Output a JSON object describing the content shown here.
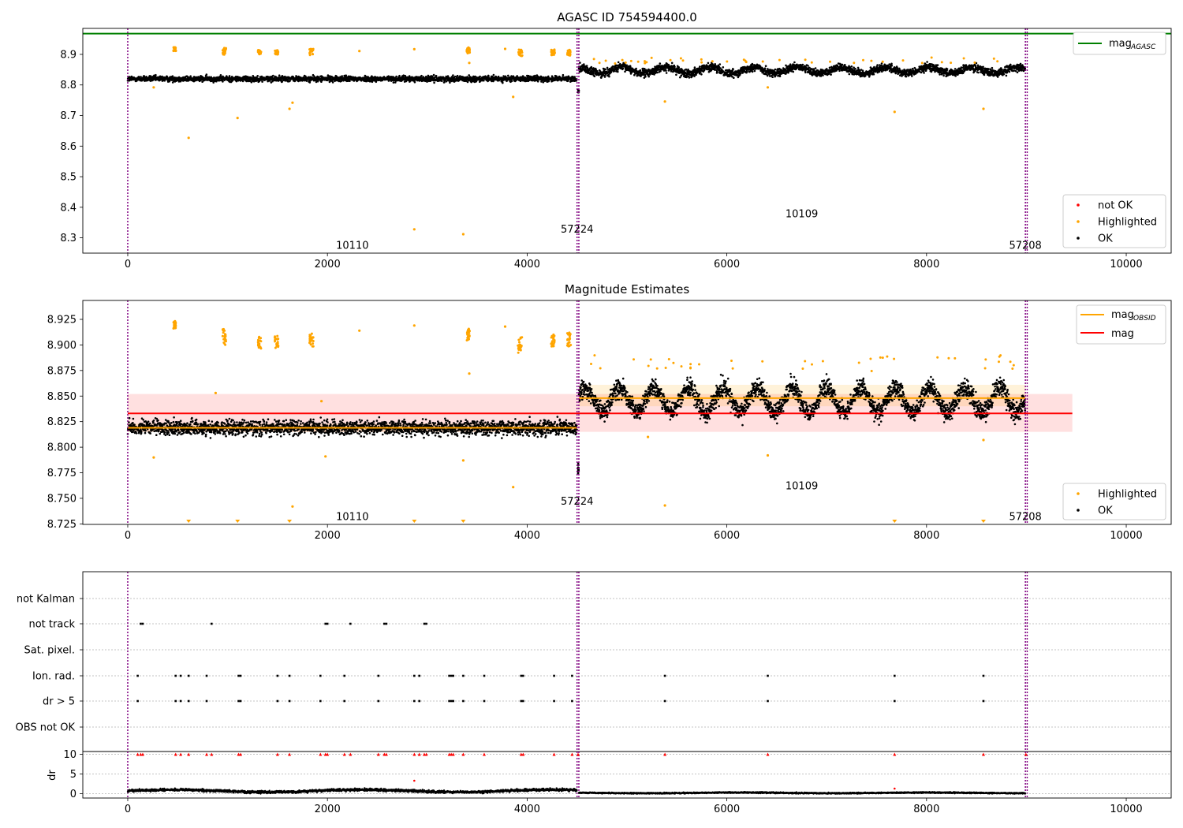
{
  "colors": {
    "ok": "#000000",
    "highlighted": "#ffa500",
    "not_ok": "#ff0000",
    "mag_agasc": "#008000",
    "mag": "#ff0000",
    "mag_obsid": "#ffa500",
    "obsid_marker": "#800080",
    "grid": "#b0b0b0"
  },
  "chart_data": [
    {
      "type": "scatter",
      "title": "AGASC ID 754594400.0",
      "xlim": [
        -450,
        10450
      ],
      "ylim": [
        8.25,
        8.985
      ],
      "xticks": [
        0,
        2000,
        4000,
        6000,
        8000,
        10000
      ],
      "yticks": [
        8.3,
        8.4,
        8.5,
        8.6,
        8.7,
        8.8,
        8.9
      ],
      "ytick_labels": [
        "8.3",
        "8.4",
        "8.5",
        "8.6",
        "8.7",
        "8.8",
        "8.9"
      ],
      "mag_agasc": 8.968,
      "obsid_boundaries": [
        0,
        4500,
        4518,
        8990,
        9008
      ],
      "obsid_labels": [
        {
          "text": "10110",
          "x": 2250,
          "y": 8.275
        },
        {
          "text": "57224",
          "x": 4500,
          "y": 8.328
        },
        {
          "text": "10109",
          "x": 6750,
          "y": 8.378
        },
        {
          "text": "57208",
          "x": 8990,
          "y": 8.275
        }
      ],
      "series": [
        {
          "name": "not OK",
          "kind": "marker"
        },
        {
          "name": "Highlighted",
          "kind": "marker"
        },
        {
          "name": "OK",
          "kind": "marker"
        },
        {
          "name": "mag",
          "sub": "AGASC",
          "kind": "line"
        }
      ],
      "highlighted_points": [
        [
          610,
          8.627
        ],
        [
          1100,
          8.692
        ],
        [
          1620,
          8.722
        ],
        [
          1650,
          8.742
        ],
        [
          2870,
          8.328
        ],
        [
          3360,
          8.312
        ],
        [
          3860,
          8.761
        ],
        [
          5380,
          8.746
        ],
        [
          6410,
          8.792
        ],
        [
          7680,
          8.712
        ],
        [
          8570,
          8.722
        ],
        [
          260,
          8.792
        ],
        [
          2320,
          8.911
        ],
        [
          2870,
          8.917
        ],
        [
          3780,
          8.918
        ],
        [
          3420,
          8.872
        ]
      ],
      "highlighted_clusters": [
        [
          470,
          8.917,
          25,
          0.013
        ],
        [
          970,
          8.91,
          40,
          0.022
        ],
        [
          1320,
          8.907,
          30,
          0.015
        ],
        [
          1490,
          8.907,
          35,
          0.015
        ],
        [
          1840,
          8.908,
          40,
          0.02
        ],
        [
          3410,
          8.913,
          30,
          0.02
        ],
        [
          3930,
          8.905,
          45,
          0.022
        ],
        [
          4260,
          8.907,
          40,
          0.02
        ],
        [
          4420,
          8.905,
          35,
          0.02
        ]
      ],
      "ok_segments": [
        {
          "x0": 0,
          "x1": 4500,
          "mean": 8.82,
          "spread": 0.014,
          "n": 2300
        },
        {
          "x0": 4518,
          "x1": 8990,
          "mean": 8.848,
          "spread": 0.02,
          "n": 2400
        }
      ]
    },
    {
      "type": "scatter",
      "title": "Magnitude Estimates",
      "xlim": [
        -450,
        10450
      ],
      "ylim": [
        8.7245,
        8.9435
      ],
      "xticks": [
        0,
        2000,
        4000,
        6000,
        8000,
        10000
      ],
      "yticks": [
        8.725,
        8.75,
        8.775,
        8.8,
        8.825,
        8.85,
        8.875,
        8.9,
        8.925
      ],
      "ytick_labels": [
        "8.725",
        "8.750",
        "8.775",
        "8.800",
        "8.825",
        "8.850",
        "8.875",
        "8.900",
        "8.925"
      ],
      "mag": 8.833,
      "mag_band": [
        8.815,
        8.852
      ],
      "mag_x_range": [
        0,
        9460
      ],
      "mag_obsid": [
        {
          "x0": 0,
          "x1": 4500,
          "value": 8.819,
          "band": [
            8.815,
            8.823
          ]
        },
        {
          "x0": 4518,
          "x1": 8990,
          "value": 8.848,
          "band": [
            8.84,
            8.861
          ]
        }
      ],
      "obsid_boundaries": [
        0,
        4500,
        4518,
        8990,
        9008
      ],
      "obsid_labels": [
        {
          "text": "10110",
          "x": 2250,
          "y": 8.732
        },
        {
          "text": "57224",
          "x": 4500,
          "y": 8.747
        },
        {
          "text": "10109",
          "x": 6750,
          "y": 8.762
        },
        {
          "text": "57208",
          "x": 8990,
          "y": 8.732
        }
      ],
      "series": [
        {
          "name": "Highlighted",
          "kind": "marker"
        },
        {
          "name": "OK",
          "kind": "marker"
        },
        {
          "name": "mag",
          "sub": "OBSID",
          "kind": "line"
        },
        {
          "name": "mag",
          "kind": "line"
        }
      ],
      "highlighted_points": [
        [
          260,
          8.79
        ],
        [
          880,
          8.853
        ],
        [
          1940,
          8.845
        ],
        [
          1980,
          8.791
        ],
        [
          2320,
          8.914
        ],
        [
          2870,
          8.919
        ],
        [
          3360,
          8.787
        ],
        [
          3420,
          8.872
        ],
        [
          3780,
          8.918
        ],
        [
          3860,
          8.761
        ],
        [
          5380,
          8.743
        ],
        [
          6410,
          8.792
        ],
        [
          8570,
          8.807
        ],
        [
          5210,
          8.81
        ],
        [
          1650,
          8.742
        ]
      ],
      "highlighted_clusters": [
        [
          470,
          8.92,
          25,
          0.008
        ],
        [
          970,
          8.908,
          40,
          0.016
        ],
        [
          1320,
          8.902,
          30,
          0.012
        ],
        [
          1490,
          8.903,
          35,
          0.012
        ],
        [
          1840,
          8.905,
          40,
          0.016
        ],
        [
          3410,
          8.91,
          30,
          0.012
        ],
        [
          3930,
          8.9,
          45,
          0.016
        ],
        [
          4260,
          8.905,
          40,
          0.014
        ],
        [
          4420,
          8.905,
          35,
          0.014
        ]
      ],
      "offscale_markers_x": [
        610,
        1100,
        1620,
        2870,
        3360,
        7680,
        8570
      ],
      "ok_segments": [
        {
          "x0": 0,
          "x1": 4500,
          "mean": 8.819,
          "spread": 0.009,
          "n": 2400
        },
        {
          "x0": 4518,
          "x1": 8990,
          "mean": 8.846,
          "spread": 0.012,
          "n": 2600
        }
      ]
    },
    {
      "type": "scatter",
      "title": "",
      "xlim": [
        -450,
        10450
      ],
      "xticks": [
        0,
        2000,
        4000,
        6000,
        8000,
        10000
      ],
      "flag_categories": [
        "not Kalman",
        "not track",
        "Sat. pixel.",
        "Ion. rad.",
        "dr > 5",
        "OBS not OK"
      ],
      "flag_points": {
        "not Kalman": [],
        "not track": [
          130,
          150,
          840,
          1980,
          2000,
          2230,
          2570,
          2590,
          2970,
          2990
        ],
        "Sat. pixel.": [],
        "Ion. rad.": [
          100,
          480,
          530,
          610,
          790,
          1110,
          1130,
          1500,
          1620,
          1930,
          2170,
          2510,
          2870,
          2920,
          3220,
          3240,
          3260,
          3360,
          3570,
          3940,
          3960,
          4270,
          4450,
          5380,
          6410,
          7680,
          8570
        ],
        "dr > 5": [
          100,
          480,
          530,
          610,
          790,
          1110,
          1130,
          1500,
          1620,
          1930,
          2170,
          2510,
          2870,
          2920,
          3220,
          3240,
          3260,
          3360,
          3570,
          3940,
          3960,
          4270,
          4450,
          5380,
          6410,
          7680,
          8570
        ],
        "OBS not OK": []
      },
      "dr_label": "dr",
      "dr_ylim": [
        -0.5,
        10.5
      ],
      "dr_yticks": [
        0,
        5,
        10
      ],
      "dr_ytick_labels": [
        "0",
        "5",
        "10"
      ],
      "dr_clip_value": 10,
      "dr_clipped_x": [
        100,
        130,
        150,
        480,
        530,
        610,
        790,
        840,
        1110,
        1130,
        1500,
        1620,
        1930,
        1980,
        2000,
        2170,
        2230,
        2510,
        2570,
        2590,
        2870,
        2920,
        2970,
        2990,
        3220,
        3240,
        3260,
        3360,
        3570,
        3940,
        3960,
        4270,
        4450,
        4510,
        5380,
        6410,
        7680,
        8570,
        8995
      ],
      "dr_outliers": [
        [
          2870,
          3.3
        ],
        [
          7680,
          1.3
        ]
      ],
      "dr_segments": [
        {
          "x0": 0,
          "x1": 4500,
          "mean": 0.7,
          "spread": 0.22
        },
        {
          "x0": 4518,
          "x1": 8990,
          "mean": 0.2,
          "spread": 0.1
        }
      ],
      "obsid_boundaries": [
        0,
        4500,
        4518,
        8990,
        9008
      ]
    }
  ]
}
